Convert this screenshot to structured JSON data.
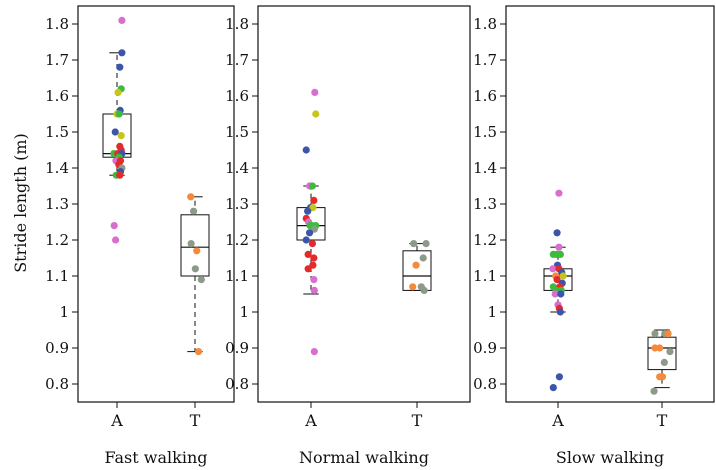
{
  "chart_data": {
    "type": "boxplot",
    "ylabel": "Stride length (m)",
    "ylim": [
      0.75,
      1.85
    ],
    "yticks": [
      "0.8",
      "0.9",
      "1",
      "1.1",
      "1.2",
      "1.3",
      "1.4",
      "1.5",
      "1.6",
      "1.7",
      "1.8"
    ],
    "colors": {
      "pink": "#d86fd0",
      "blue": "#3b55a8",
      "green": "#3dbb3d",
      "yellow": "#c7c41c",
      "red": "#e32b2b",
      "orange": "#f58a3a",
      "gray": "#8e9a89"
    },
    "panels": [
      {
        "title": "Fast walking",
        "groups": [
          {
            "label": "A",
            "box": {
              "min": 1.38,
              "q1": 1.43,
              "median": 1.44,
              "q3": 1.55,
              "max": 1.72
            },
            "points": [
              {
                "y": 1.81,
                "c": "pink",
                "j": 0.14
              },
              {
                "y": 1.72,
                "c": "blue",
                "j": 0.14
              },
              {
                "y": 1.68,
                "c": "blue",
                "j": 0.08
              },
              {
                "y": 1.62,
                "c": "green",
                "j": 0.12
              },
              {
                "y": 1.61,
                "c": "yellow",
                "j": 0.03
              },
              {
                "y": 1.56,
                "c": "blue",
                "j": 0.09
              },
              {
                "y": 1.55,
                "c": "yellow",
                "j": 0.0
              },
              {
                "y": 1.55,
                "c": "green",
                "j": 0.06
              },
              {
                "y": 1.5,
                "c": "blue",
                "j": -0.05
              },
              {
                "y": 1.49,
                "c": "yellow",
                "j": 0.12
              },
              {
                "y": 1.46,
                "c": "red",
                "j": 0.08
              },
              {
                "y": 1.45,
                "c": "red",
                "j": 0.12
              },
              {
                "y": 1.44,
                "c": "green",
                "j": -0.09
              },
              {
                "y": 1.44,
                "c": "red",
                "j": 0.02
              },
              {
                "y": 1.44,
                "c": "blue",
                "j": 0.14
              },
              {
                "y": 1.43,
                "c": "green",
                "j": 0.06
              },
              {
                "y": 1.42,
                "c": "pink",
                "j": -0.03
              },
              {
                "y": 1.42,
                "c": "red",
                "j": 0.1
              },
              {
                "y": 1.41,
                "c": "red",
                "j": 0.05
              },
              {
                "y": 1.4,
                "c": "gray",
                "j": 0.14
              },
              {
                "y": 1.39,
                "c": "blue",
                "j": 0.1
              },
              {
                "y": 1.38,
                "c": "green",
                "j": -0.02
              },
              {
                "y": 1.38,
                "c": "red",
                "j": 0.08
              },
              {
                "y": 1.24,
                "c": "pink",
                "j": -0.08
              },
              {
                "y": 1.2,
                "c": "pink",
                "j": -0.04
              }
            ]
          },
          {
            "label": "T",
            "box": {
              "min": 0.89,
              "q1": 1.1,
              "median": 1.18,
              "q3": 1.27,
              "max": 1.32
            },
            "points": [
              {
                "y": 1.32,
                "c": "orange",
                "j": -0.12
              },
              {
                "y": 1.28,
                "c": "gray",
                "j": -0.04
              },
              {
                "y": 1.19,
                "c": "gray",
                "j": -0.11
              },
              {
                "y": 1.17,
                "c": "orange",
                "j": 0.05
              },
              {
                "y": 1.12,
                "c": "gray",
                "j": 0.01
              },
              {
                "y": 1.09,
                "c": "gray",
                "j": 0.18
              },
              {
                "y": 0.89,
                "c": "orange",
                "j": 0.1
              }
            ]
          }
        ]
      },
      {
        "title": "Normal walking",
        "groups": [
          {
            "label": "A",
            "box": {
              "min": 1.05,
              "q1": 1.2,
              "median": 1.24,
              "q3": 1.29,
              "max": 1.35
            },
            "points": [
              {
                "y": 1.61,
                "c": "pink",
                "j": 0.08
              },
              {
                "y": 1.55,
                "c": "yellow",
                "j": 0.1
              },
              {
                "y": 1.45,
                "c": "blue",
                "j": -0.1
              },
              {
                "y": 1.35,
                "c": "pink",
                "j": -0.03
              },
              {
                "y": 1.35,
                "c": "green",
                "j": 0.03
              },
              {
                "y": 1.31,
                "c": "red",
                "j": 0.06
              },
              {
                "y": 1.29,
                "c": "blue",
                "j": -0.01
              },
              {
                "y": 1.29,
                "c": "yellow",
                "j": 0.04
              },
              {
                "y": 1.28,
                "c": "blue",
                "j": -0.07
              },
              {
                "y": 1.26,
                "c": "red",
                "j": -0.1
              },
              {
                "y": 1.25,
                "c": "pink",
                "j": -0.05
              },
              {
                "y": 1.24,
                "c": "green",
                "j": -0.02
              },
              {
                "y": 1.24,
                "c": "green",
                "j": 0.02
              },
              {
                "y": 1.24,
                "c": "green",
                "j": 0.1
              },
              {
                "y": 1.23,
                "c": "gray",
                "j": 0.07
              },
              {
                "y": 1.22,
                "c": "blue",
                "j": -0.03
              },
              {
                "y": 1.2,
                "c": "blue",
                "j": -0.1
              },
              {
                "y": 1.19,
                "c": "red",
                "j": 0.03
              },
              {
                "y": 1.16,
                "c": "red",
                "j": -0.06
              },
              {
                "y": 1.15,
                "c": "red",
                "j": 0.06
              },
              {
                "y": 1.13,
                "c": "red",
                "j": 0.04
              },
              {
                "y": 1.12,
                "c": "red",
                "j": -0.06
              },
              {
                "y": 1.09,
                "c": "pink",
                "j": 0.06
              },
              {
                "y": 1.06,
                "c": "pink",
                "j": 0.07
              },
              {
                "y": 0.89,
                "c": "pink",
                "j": 0.07
              }
            ]
          },
          {
            "label": "T",
            "box": {
              "min": 1.06,
              "q1": 1.06,
              "median": 1.1,
              "q3": 1.17,
              "max": 1.19
            },
            "points": [
              {
                "y": 1.19,
                "c": "gray",
                "j": -0.07
              },
              {
                "y": 1.19,
                "c": "gray",
                "j": 0.19
              },
              {
                "y": 1.15,
                "c": "gray",
                "j": 0.13
              },
              {
                "y": 1.13,
                "c": "orange",
                "j": -0.02
              },
              {
                "y": 1.07,
                "c": "orange",
                "j": -0.09
              },
              {
                "y": 1.07,
                "c": "gray",
                "j": 0.09
              },
              {
                "y": 1.06,
                "c": "gray",
                "j": 0.15
              }
            ]
          }
        ]
      },
      {
        "title": "Slow walking",
        "groups": [
          {
            "label": "A",
            "box": {
              "min": 1.0,
              "q1": 1.06,
              "median": 1.1,
              "q3": 1.12,
              "max": 1.18
            },
            "points": [
              {
                "y": 1.33,
                "c": "pink",
                "j": 0.02
              },
              {
                "y": 1.22,
                "c": "blue",
                "j": -0.02
              },
              {
                "y": 1.18,
                "c": "pink",
                "j": 0.02
              },
              {
                "y": 1.16,
                "c": "green",
                "j": -0.1
              },
              {
                "y": 1.16,
                "c": "green",
                "j": -0.03
              },
              {
                "y": 1.16,
                "c": "green",
                "j": 0.05
              },
              {
                "y": 1.13,
                "c": "blue",
                "j": -0.01
              },
              {
                "y": 1.12,
                "c": "pink",
                "j": -0.11
              },
              {
                "y": 1.12,
                "c": "red",
                "j": 0.02
              },
              {
                "y": 1.11,
                "c": "blue",
                "j": 0.08
              },
              {
                "y": 1.1,
                "c": "orange",
                "j": -0.05
              },
              {
                "y": 1.1,
                "c": "yellow",
                "j": 0.11
              },
              {
                "y": 1.09,
                "c": "red",
                "j": -0.02
              },
              {
                "y": 1.08,
                "c": "blue",
                "j": 0.09
              },
              {
                "y": 1.07,
                "c": "green",
                "j": -0.1
              },
              {
                "y": 1.07,
                "c": "red",
                "j": 0.04
              },
              {
                "y": 1.06,
                "c": "green",
                "j": -0.04
              },
              {
                "y": 1.06,
                "c": "green",
                "j": 0.07
              },
              {
                "y": 1.05,
                "c": "pink",
                "j": -0.06
              },
              {
                "y": 1.05,
                "c": "blue",
                "j": 0.06
              },
              {
                "y": 1.02,
                "c": "pink",
                "j": 0.0
              },
              {
                "y": 1.01,
                "c": "red",
                "j": 0.03
              },
              {
                "y": 1.0,
                "c": "blue",
                "j": 0.05
              },
              {
                "y": 0.82,
                "c": "blue",
                "j": 0.03
              },
              {
                "y": 0.79,
                "c": "blue",
                "j": -0.1
              }
            ]
          },
          {
            "label": "T",
            "box": {
              "min": 0.79,
              "q1": 0.84,
              "median": 0.9,
              "q3": 0.93,
              "max": 0.95
            },
            "points": [
              {
                "y": 0.94,
                "c": "gray",
                "j": -0.15
              },
              {
                "y": 0.94,
                "c": "gray",
                "j": 0.06
              },
              {
                "y": 0.94,
                "c": "orange",
                "j": 0.13
              },
              {
                "y": 0.9,
                "c": "orange",
                "j": -0.15
              },
              {
                "y": 0.9,
                "c": "orange",
                "j": -0.05
              },
              {
                "y": 0.89,
                "c": "gray",
                "j": 0.17
              },
              {
                "y": 0.86,
                "c": "gray",
                "j": 0.05
              },
              {
                "y": 0.82,
                "c": "orange",
                "j": -0.05
              },
              {
                "y": 0.82,
                "c": "orange",
                "j": 0.01
              },
              {
                "y": 0.78,
                "c": "gray",
                "j": -0.17
              }
            ]
          }
        ]
      }
    ]
  }
}
